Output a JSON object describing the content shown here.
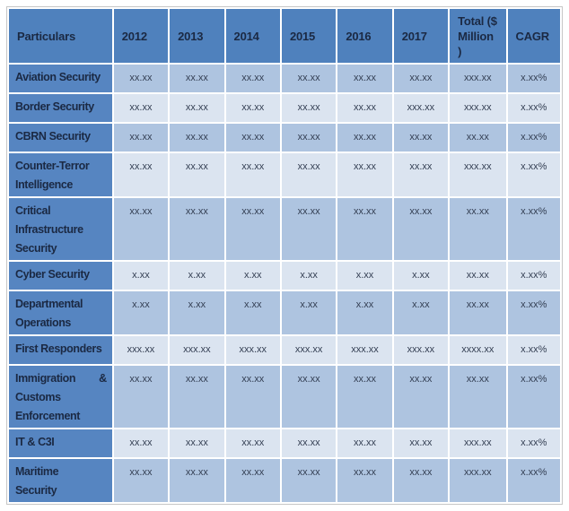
{
  "theme": {
    "header_bg": "#4f81bd",
    "rowhead_bg": "#5685c1",
    "stripe_medium": "#aec4e0",
    "stripe_light": "#dbe4f0",
    "head_text": "#1b2943",
    "cell_text": "#333e52"
  },
  "table": {
    "columns": [
      "Particulars",
      "2012",
      "2013",
      "2014",
      "2015",
      "2016",
      "2017",
      "Total ($\nMillion\n)",
      "CAGR"
    ],
    "rows": [
      {
        "label": "Aviation Security",
        "values": [
          "xx.xx",
          "xx.xx",
          "xx.xx",
          "xx.xx",
          "xx.xx",
          "xx.xx",
          "xxx.xx",
          "x.xx%"
        ]
      },
      {
        "label": "Border Security",
        "values": [
          "xx.xx",
          "xx.xx",
          "xx.xx",
          "xx.xx",
          "xx.xx",
          "xxx.xx",
          "xxx.xx",
          "x.xx%"
        ]
      },
      {
        "label": "CBRN Security",
        "values": [
          "xx.xx",
          "xx.xx",
          "xx.xx",
          "xx.xx",
          "xx.xx",
          "xx.xx",
          "xx.xx",
          "x.xx%"
        ]
      },
      {
        "label": "Counter-Terror\nIntelligence",
        "values": [
          "xx.xx",
          "xx.xx",
          "xx.xx",
          "xx.xx",
          "xx.xx",
          "xx.xx",
          "xxx.xx",
          "x.xx%"
        ]
      },
      {
        "label": "Critical\nInfrastructure\nSecurity",
        "values": [
          "xx.xx",
          "xx.xx",
          "xx.xx",
          "xx.xx",
          "xx.xx",
          "xx.xx",
          "xx.xx",
          "x.xx%"
        ]
      },
      {
        "label": "Cyber Security",
        "values": [
          "x.xx",
          "x.xx",
          "x.xx",
          "x.xx",
          "x.xx",
          "x.xx",
          "xx.xx",
          "x.xx%"
        ]
      },
      {
        "label": "Departmental\nOperations",
        "values": [
          "x.xx",
          "x.xx",
          "x.xx",
          "x.xx",
          "x.xx",
          "x.xx",
          "xx.xx",
          "x.xx%"
        ]
      },
      {
        "label": "First Responders",
        "values": [
          "xxx.xx",
          "xxx.xx",
          "xxx.xx",
          "xxx.xx",
          "xxx.xx",
          "xxx.xx",
          "xxxx.xx",
          "x.xx%"
        ]
      },
      {
        "label": "Immigration & Customs Enforcement",
        "justify": true,
        "values": [
          "xx.xx",
          "xx.xx",
          "xx.xx",
          "xx.xx",
          "xx.xx",
          "xx.xx",
          "xx.xx",
          "x.xx%"
        ]
      },
      {
        "label": "IT & C3I",
        "values": [
          "xx.xx",
          "xx.xx",
          "xx.xx",
          "xx.xx",
          "xx.xx",
          "xx.xx",
          "xxx.xx",
          "x.xx%"
        ]
      },
      {
        "label": "Maritime\nSecurity",
        "values": [
          "xx.xx",
          "xx.xx",
          "xx.xx",
          "xx.xx",
          "xx.xx",
          "xx.xx",
          "xxx.xx",
          "x.xx%"
        ]
      }
    ]
  }
}
